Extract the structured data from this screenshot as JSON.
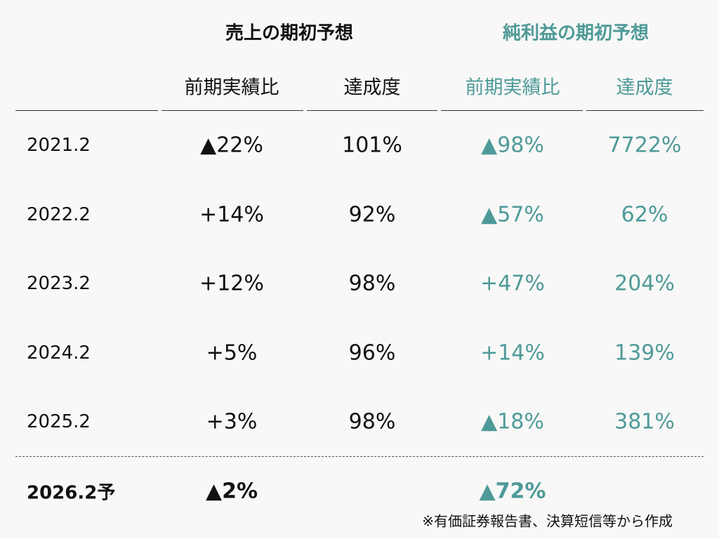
{
  "header": {
    "groups": [
      "売上の期初予想",
      "純利益の期初予想"
    ],
    "columns": [
      "前期実績比",
      "達成度",
      "前期実績比",
      "達成度"
    ]
  },
  "table": {
    "rows": [
      [
        "2021.2",
        "▲22%",
        "101%",
        "▲98%",
        "7722%"
      ],
      [
        "2022.2",
        "+14%",
        "92%",
        "▲57%",
        "62%"
      ],
      [
        "2023.2",
        "+12%",
        "98%",
        "+47%",
        "204%"
      ],
      [
        "2024.2",
        "+5%",
        "96%",
        "+14%",
        "139%"
      ],
      [
        "2025.2",
        "+3%",
        "98%",
        "▲18%",
        "381%"
      ]
    ]
  },
  "forecast": {
    "period": "2026.2予",
    "sales_yoy": "▲2%",
    "profit_yoy": "▲72%"
  },
  "note": "※有価証券報告書、決算短信等から作成"
}
